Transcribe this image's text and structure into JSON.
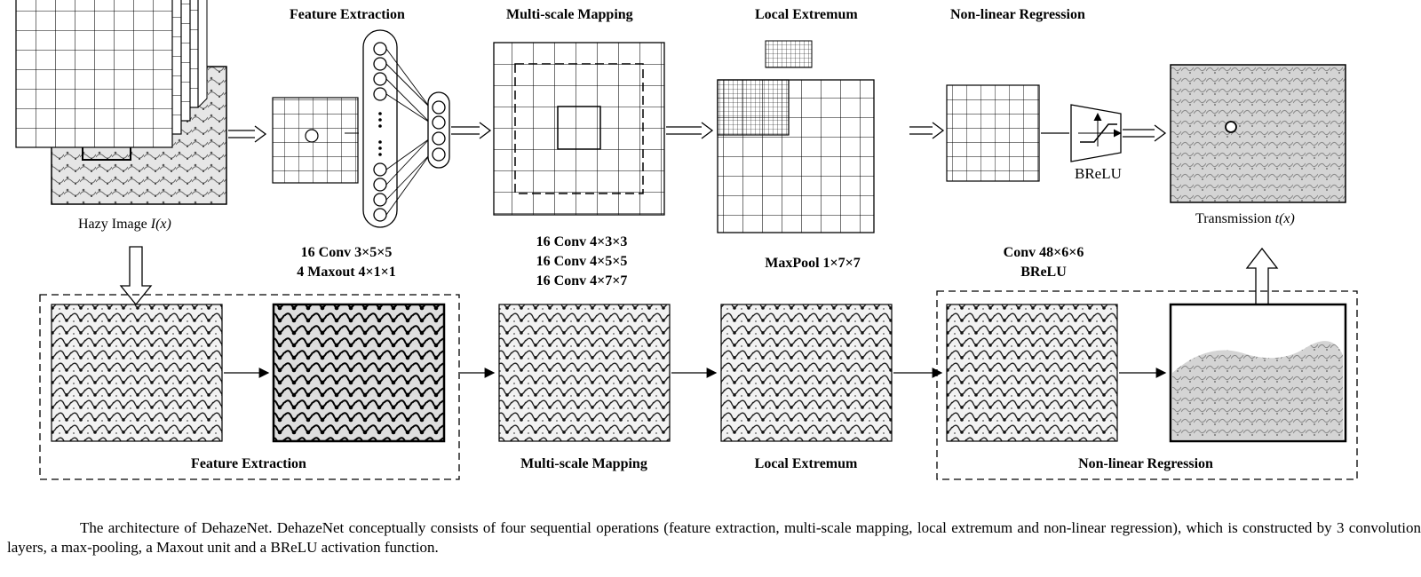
{
  "top": {
    "hazy_image_label": "Hazy Image",
    "hazy_image_var": "I(x)",
    "feature_extraction_title": "Feature Extraction",
    "multiscale_title": "Multi-scale Mapping",
    "local_extremum_title": "Local Extremum",
    "nonlinear_title": "Non-linear Regression",
    "brelu_label": "BReLU",
    "transmission_label": "Transmission",
    "transmission_var": "t(x)"
  },
  "params": {
    "feature_extraction": [
      "16 Conv 3×5×5",
      "4 Maxout 4×1×1"
    ],
    "multiscale": [
      "16 Conv 4×3×3",
      "16 Conv 4×5×5",
      "16 Conv 4×7×7"
    ],
    "local_extremum": [
      "MaxPool 1×7×7"
    ],
    "nonlinear": [
      "Conv 48×6×6",
      "BReLU"
    ]
  },
  "bottom": {
    "feature_extraction_label": "Feature Extraction",
    "multiscale_label": "Multi-scale Mapping",
    "local_extremum_label": "Local Extremum",
    "nonlinear_label": "Non-linear Regression"
  },
  "caption": "The architecture of DehazeNet. DehazeNet conceptually consists of four sequential operations (feature extraction, multi-scale mapping, local extremum and non-linear regression), which is constructed by 3 convolution layers, a max-pooling, a Maxout unit and a BReLU activation function."
}
